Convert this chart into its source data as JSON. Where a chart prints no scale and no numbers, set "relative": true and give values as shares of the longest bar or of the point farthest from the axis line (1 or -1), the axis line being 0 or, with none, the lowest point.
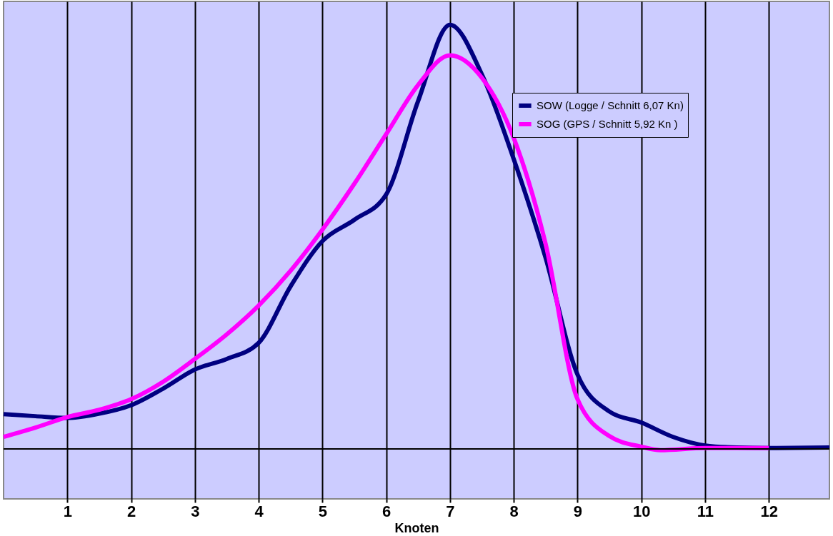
{
  "chart_data": {
    "type": "line",
    "xlabel": "Knoten",
    "relative": true,
    "xlim": [
      0,
      12.95
    ],
    "xticks": [
      1,
      2,
      3,
      4,
      5,
      6,
      7,
      8,
      9,
      10,
      11,
      12
    ],
    "grid": "x",
    "legend": "top right",
    "marker": "none",
    "line_style": "solid",
    "series": [
      {
        "name": "SOW (Logge / Schnitt 6,07 Kn)",
        "color": "#000080",
        "x": [
          0,
          0.5,
          1,
          1.5,
          2,
          2.5,
          3,
          3.5,
          4,
          4.5,
          5,
          5.5,
          6,
          6.5,
          7,
          7.5,
          8,
          8.5,
          9,
          9.5,
          10,
          10.5,
          11,
          11.5,
          12,
          12.95
        ],
        "values": [
          0.082,
          0.077,
          0.073,
          0.083,
          0.103,
          0.142,
          0.187,
          0.212,
          0.25,
          0.383,
          0.49,
          0.54,
          0.6,
          0.82,
          1.0,
          0.883,
          0.683,
          0.45,
          0.175,
          0.088,
          0.062,
          0.028,
          0.008,
          0.003,
          0.002,
          0.003
        ]
      },
      {
        "name": "SOG (GPS / Schnitt 5,92 Kn )",
        "color": "#ff00ff",
        "x": [
          0,
          0.5,
          1,
          1.5,
          2,
          2.5,
          3,
          3.5,
          4,
          4.5,
          5,
          5.5,
          6,
          6.5,
          7,
          7.5,
          8,
          8.5,
          9,
          9.5,
          10,
          10.3,
          11,
          12
        ],
        "values": [
          0.028,
          0.05,
          0.075,
          0.092,
          0.117,
          0.158,
          0.212,
          0.27,
          0.338,
          0.42,
          0.517,
          0.625,
          0.742,
          0.858,
          0.928,
          0.875,
          0.733,
          0.483,
          0.117,
          0.03,
          0.005,
          -0.003,
          0.002,
          0.002
        ]
      }
    ]
  }
}
